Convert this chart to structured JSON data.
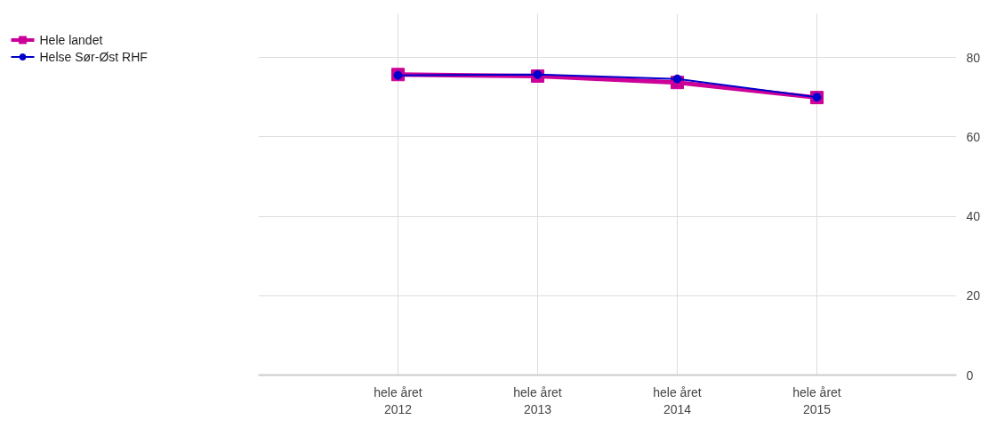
{
  "chart_data": {
    "type": "line",
    "categories": [
      "hele året\n2012",
      "hele året\n2013",
      "hele året\n2014",
      "hele året\n2015"
    ],
    "series": [
      {
        "name": "Hele landet",
        "color": "#cc0099",
        "values": [
          75.7,
          75.3,
          73.7,
          69.9
        ],
        "marker": "square"
      },
      {
        "name": "Helse Sør-Øst RHF",
        "color": "#0000cc",
        "values": [
          75.5,
          75.7,
          74.6,
          70.0
        ],
        "marker": "circle"
      }
    ],
    "ylim": [
      0,
      91
    ],
    "yticks": [
      0,
      20,
      40,
      60,
      80
    ],
    "grid": true,
    "legend": "top left",
    "line_style": "solid"
  }
}
